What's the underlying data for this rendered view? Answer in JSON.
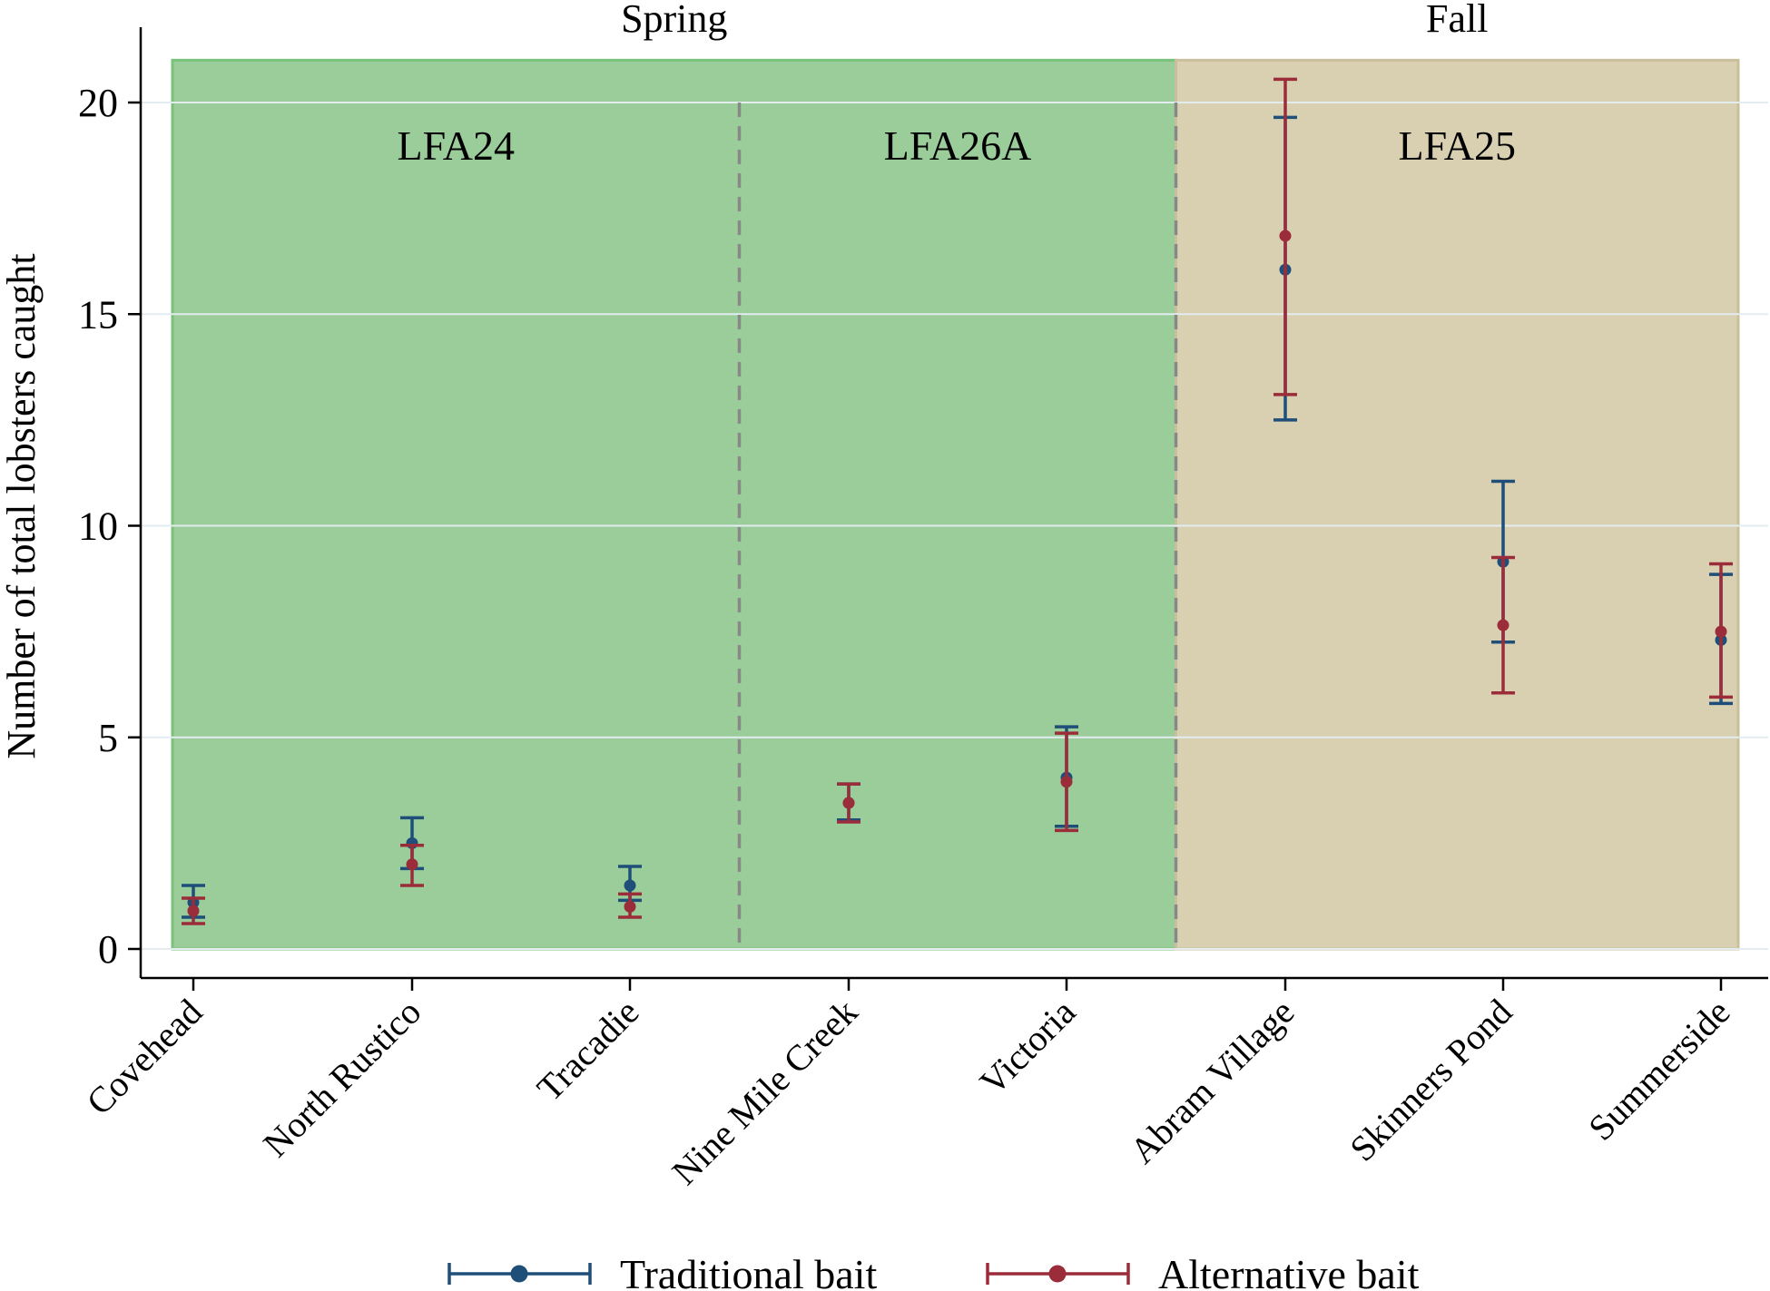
{
  "chart_data": {
    "type": "scatter",
    "subtype": "point-with-error-bars",
    "ylabel": "Number of total lobsters caught",
    "xlabel": "",
    "ylim": [
      -0.7,
      21.9
    ],
    "yticks": [
      0,
      5,
      10,
      15,
      20
    ],
    "gridlines": "horizontal",
    "categories": [
      "Covehead",
      "North Rustico",
      "Tracadie",
      "Nine Mile Creek",
      "Victoria",
      "Abram Village",
      "Skinners Pond",
      "Summerside"
    ],
    "seasons": [
      {
        "label": "Spring",
        "color": "#9acd9a",
        "from": 0,
        "to": 4
      },
      {
        "label": "Fall",
        "color": "#d9d0b2",
        "from": 5,
        "to": 7
      }
    ],
    "areas": [
      {
        "label": "LFA24",
        "from": 0,
        "to": 2
      },
      {
        "label": "LFA26A",
        "from": 3,
        "to": 4
      },
      {
        "label": "LFA25",
        "from": 5,
        "to": 7
      }
    ],
    "series": [
      {
        "name": "Traditional bait",
        "color": "#1f4e79",
        "values": [
          1.1,
          2.5,
          1.5,
          3.45,
          4.05,
          16.05,
          9.15,
          7.3
        ],
        "lower": [
          0.75,
          1.9,
          1.15,
          3.05,
          2.9,
          12.5,
          7.25,
          5.8
        ],
        "upper": [
          1.5,
          3.1,
          1.95,
          3.9,
          5.25,
          19.65,
          11.05,
          8.85
        ]
      },
      {
        "name": "Alternative bait",
        "color": "#9b2d3a",
        "values": [
          0.9,
          2.0,
          1.0,
          3.45,
          3.95,
          16.85,
          7.65,
          7.5
        ],
        "lower": [
          0.6,
          1.5,
          0.75,
          3.0,
          2.8,
          13.1,
          6.05,
          5.95
        ],
        "upper": [
          1.2,
          2.45,
          1.3,
          3.9,
          5.1,
          20.55,
          9.25,
          9.1
        ]
      }
    ]
  }
}
